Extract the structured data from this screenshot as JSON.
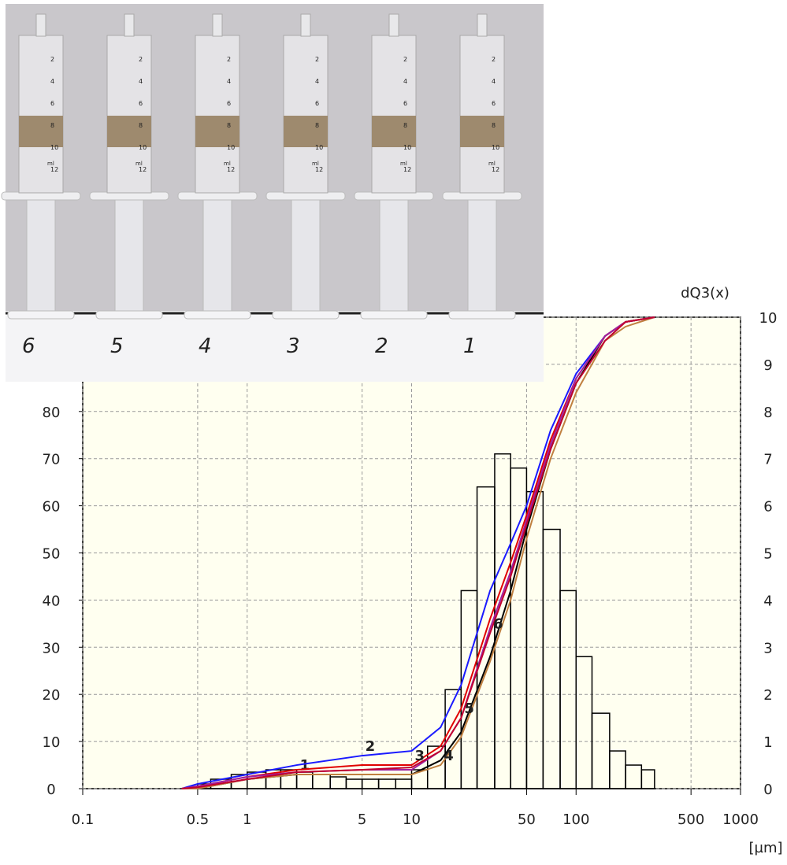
{
  "photo": {
    "labels": [
      "6",
      "5",
      "4",
      "3",
      "2",
      "1"
    ],
    "scale_marks": [
      "2",
      "4",
      "6",
      "8",
      "10",
      "12"
    ],
    "scale_unit": "ml"
  },
  "chart_data": {
    "type": "line",
    "x": [
      0.4,
      0.5,
      1,
      2,
      5,
      10,
      15,
      20,
      30,
      40,
      50,
      70,
      100,
      150,
      200,
      300
    ],
    "series": [
      {
        "name": "1",
        "color": "#000000",
        "values": [
          0,
          0,
          2,
          3,
          3,
          3,
          6,
          12,
          28,
          42,
          55,
          72,
          86,
          96,
          99,
          100
        ]
      },
      {
        "name": "2",
        "color": "#1a1aff",
        "values": [
          0,
          1,
          3,
          5,
          7,
          8,
          13,
          22,
          42,
          52,
          60,
          76,
          88,
          96,
          99,
          100
        ]
      },
      {
        "name": "3",
        "color": "#e00000",
        "values": [
          0,
          0.5,
          2.5,
          4,
          5,
          5,
          9,
          17,
          36,
          48,
          58,
          74,
          87,
          96,
          99,
          100
        ]
      },
      {
        "name": "4",
        "color": "#c08040",
        "values": [
          0,
          0,
          2,
          3,
          3,
          3,
          5,
          11,
          27,
          40,
          53,
          70,
          84,
          95,
          98,
          100
        ]
      },
      {
        "name": "5",
        "color": "#a020a0",
        "values": [
          0,
          0.5,
          2.5,
          3.5,
          4,
          4,
          8,
          15,
          34,
          46,
          57,
          73,
          87,
          96,
          99,
          100
        ]
      },
      {
        "name": "6",
        "color": "#c00030",
        "values": [
          0,
          0.3,
          2,
          3.5,
          4,
          4.5,
          8,
          15,
          33,
          45,
          56,
          72,
          86,
          95,
          99,
          100
        ]
      }
    ],
    "histogram": {
      "type": "histogram",
      "color": "#000000",
      "axis": "y2",
      "bins": [
        0.4,
        0.5,
        0.6,
        0.8,
        1,
        1.3,
        1.6,
        2,
        2.5,
        3.2,
        4,
        5,
        6.3,
        8,
        10,
        12.5,
        16,
        20,
        25,
        32,
        40,
        50,
        63,
        80,
        100,
        125,
        160,
        200,
        250,
        300
      ],
      "counts": [
        0,
        0.1,
        0.2,
        0.3,
        0.35,
        0.4,
        0.4,
        0.35,
        0.3,
        0.25,
        0.2,
        0.2,
        0.2,
        0.2,
        0.4,
        0.9,
        2.1,
        4.2,
        6.4,
        7.1,
        6.8,
        6.3,
        5.5,
        4.2,
        2.8,
        1.6,
        0.8,
        0.5,
        0.4
      ]
    },
    "xscale": "log",
    "xlim": [
      0.1,
      1000
    ],
    "xticks": [
      0.1,
      0.5,
      1,
      5,
      10,
      50,
      100,
      500,
      1000
    ],
    "ylim": [
      0,
      100
    ],
    "yticks": [
      0,
      10,
      20,
      30,
      40,
      50,
      60,
      70,
      80
    ],
    "y2lim": [
      0,
      10
    ],
    "y2ticks": [
      0,
      1,
      2,
      3,
      4,
      5,
      6,
      7,
      8,
      9,
      10
    ],
    "y2label": "dQ3(x)",
    "xlabel": "[µm]",
    "grid": true
  }
}
